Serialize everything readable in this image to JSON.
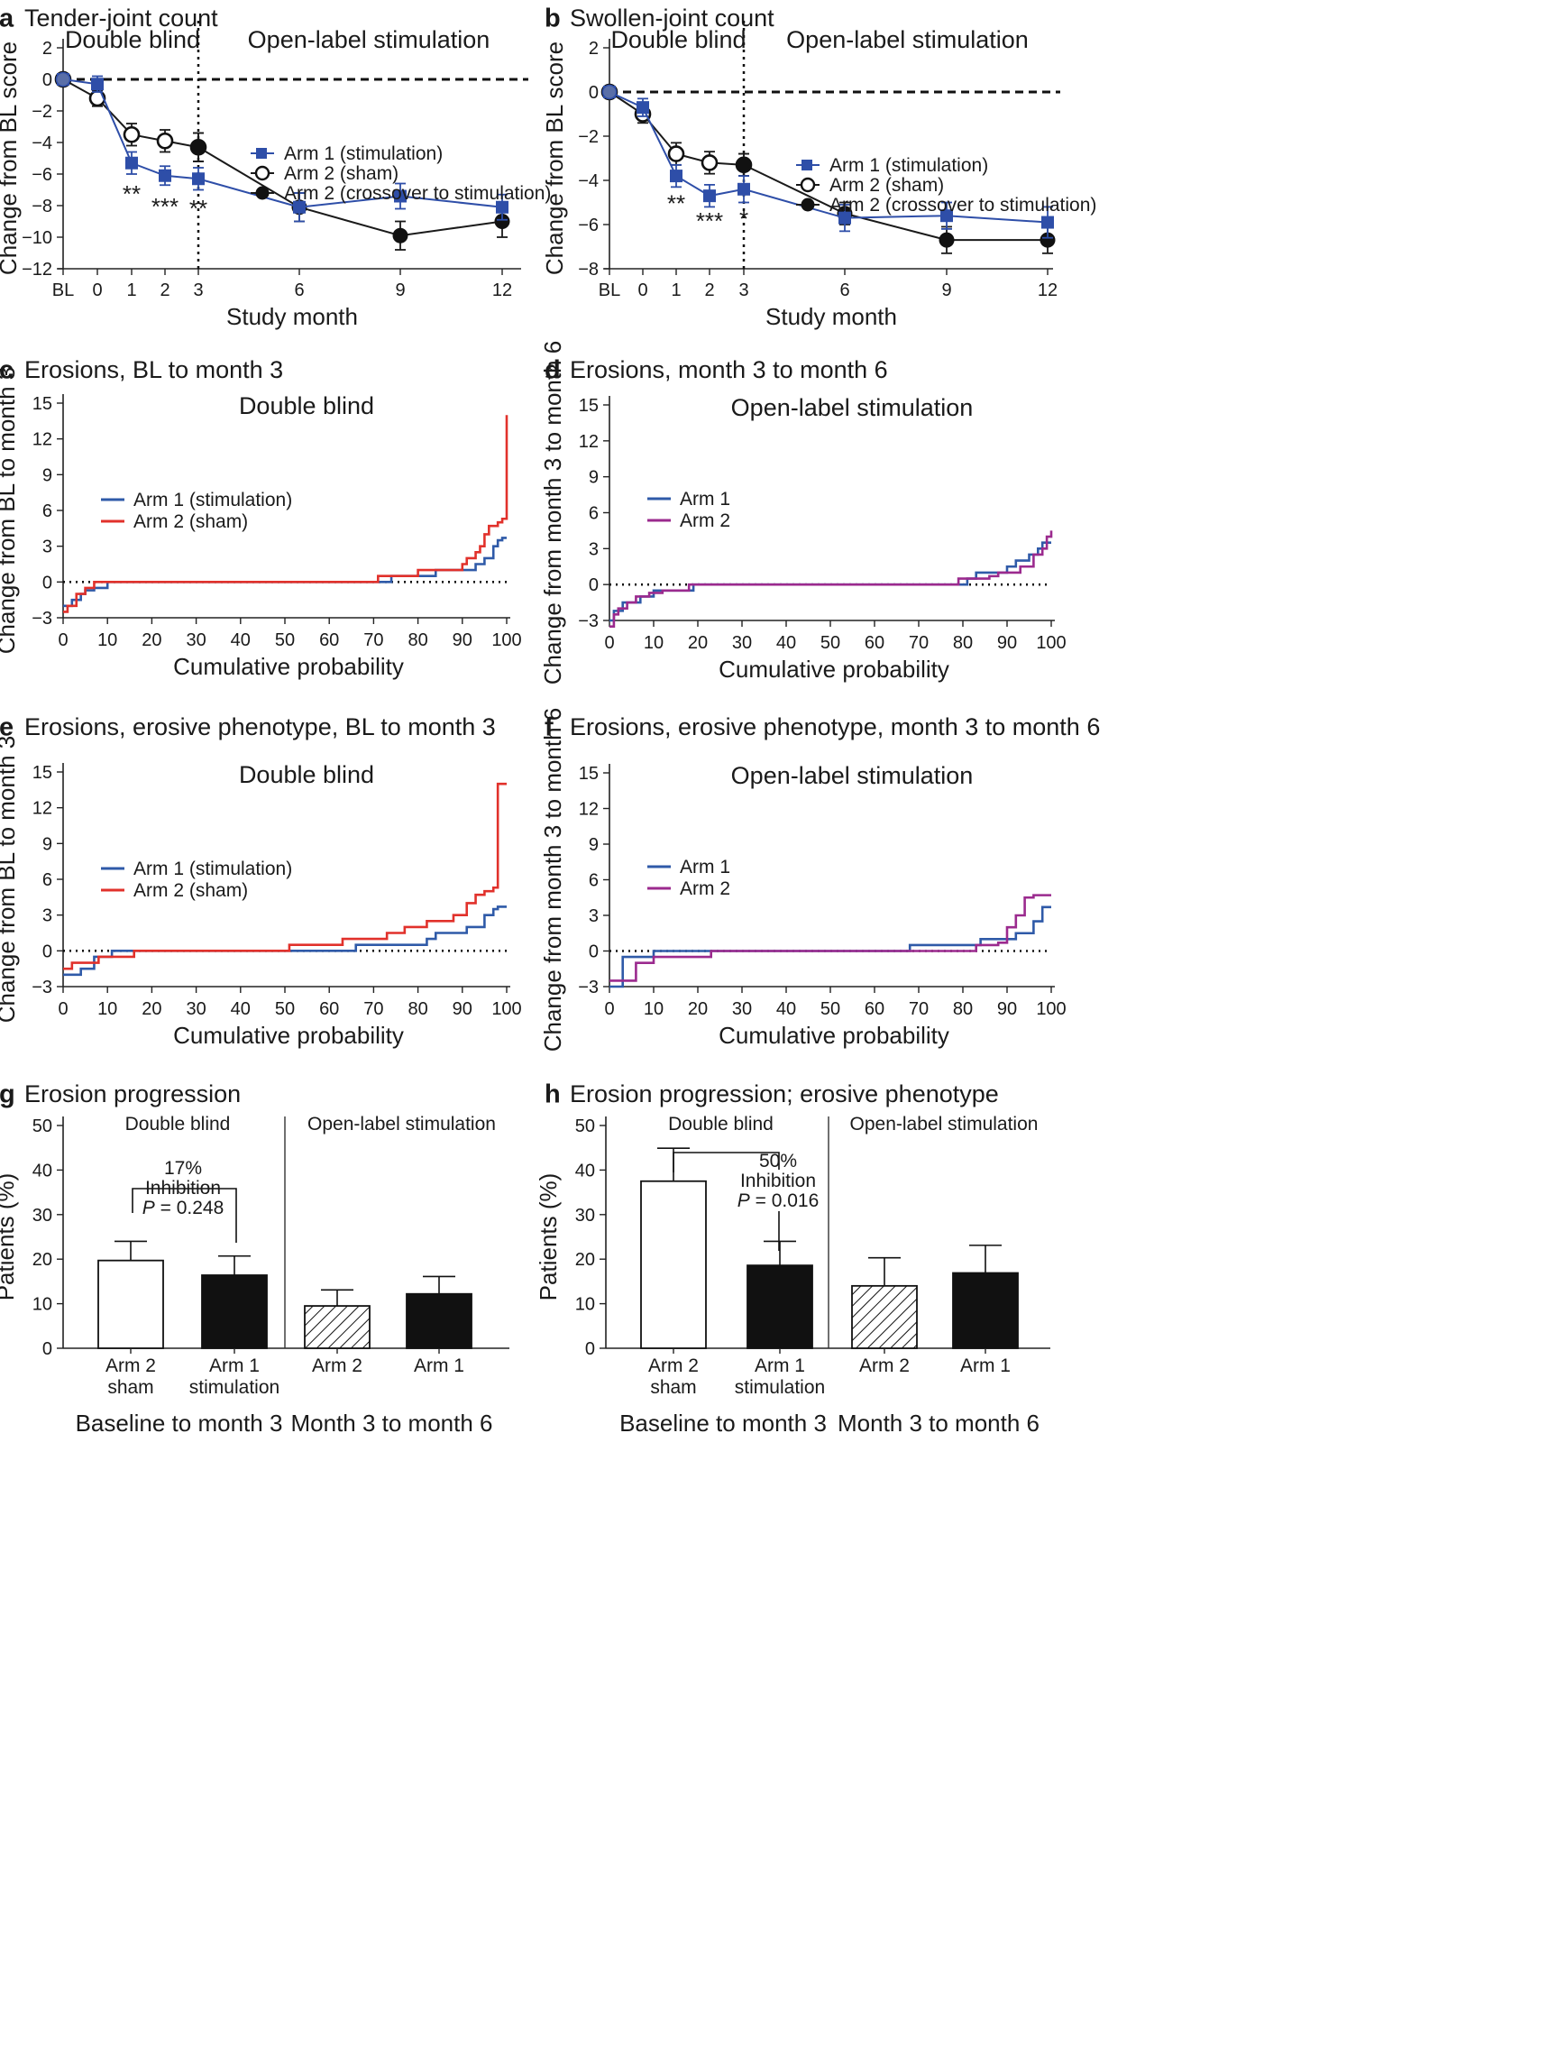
{
  "figure": {
    "colors": {
      "arm1": "#2e4ea8",
      "arm2_sham": "#1a1a1a",
      "cdf_blue": "#2f5aa8",
      "cdf_red": "#e1312b",
      "cdf_purple": "#9b2a8e",
      "bar_black": "#111111"
    }
  },
  "chart_data": [
    {
      "id": "a",
      "letter": "a",
      "type": "line",
      "title": "Tender-joint count",
      "xlabel": "Study month",
      "ylabel": "Change from BL score",
      "x_categories": [
        "BL",
        "0",
        "1",
        "2",
        "3",
        "6",
        "9",
        "12"
      ],
      "ylim": [
        -12,
        2
      ],
      "yticks": [
        "2",
        "0",
        "−2",
        "−4",
        "−6",
        "−8",
        "−10",
        "−12"
      ],
      "section_labels": [
        "Double blind",
        "Open-label stimulation"
      ],
      "divider_at_month": 3,
      "series": [
        {
          "name": "Arm 1 (stimulation)",
          "marker": "square",
          "color": "#2e4ea8",
          "x": [
            "BL",
            "0",
            "1",
            "2",
            "3",
            "6",
            "9",
            "12"
          ],
          "values": [
            0,
            -0.3,
            -5.3,
            -6.1,
            -6.3,
            -8.1,
            -7.4,
            -8.1
          ],
          "errors": [
            0,
            0.5,
            0.7,
            0.6,
            0.7,
            0.9,
            0.8,
            0.8
          ]
        },
        {
          "name": "Arm 2 (sham)",
          "marker": "open-circle",
          "color": "#1a1a1a",
          "x": [
            "BL",
            "0",
            "1",
            "2",
            "3"
          ],
          "values": [
            0,
            -1.2,
            -3.5,
            -3.9,
            -4.3
          ],
          "errors": [
            0,
            0.5,
            0.7,
            0.7,
            0.9
          ]
        },
        {
          "name": "Arm 2 (crossover to stimulation)",
          "marker": "filled-circle",
          "color": "#1a1a1a",
          "x": [
            "3",
            "6",
            "9",
            "12"
          ],
          "values": [
            -4.3,
            -8.1,
            -9.9,
            -9.0
          ],
          "errors": [
            0.9,
            0.9,
            0.9,
            1.0
          ]
        }
      ],
      "annotations": [
        {
          "text": "**",
          "month": "1",
          "y": -7.2
        },
        {
          "text": "***",
          "month": "2",
          "y": -8.0
        },
        {
          "text": "**",
          "month": "3",
          "y": -8.1
        }
      ]
    },
    {
      "id": "b",
      "letter": "b",
      "type": "line",
      "title": "Swollen-joint count",
      "xlabel": "Study month",
      "ylabel": "Change from BL score",
      "x_categories": [
        "BL",
        "0",
        "1",
        "2",
        "3",
        "6",
        "9",
        "12"
      ],
      "ylim": [
        -8,
        2
      ],
      "yticks": [
        "2",
        "0",
        "−2",
        "−4",
        "−6",
        "−8"
      ],
      "section_labels": [
        "Double blind",
        "Open-label stimulation"
      ],
      "divider_at_month": 3,
      "series": [
        {
          "name": "Arm 1 (stimulation)",
          "marker": "square",
          "color": "#2e4ea8",
          "x": [
            "BL",
            "0",
            "1",
            "2",
            "3",
            "6",
            "9",
            "12"
          ],
          "values": [
            0,
            -0.7,
            -3.8,
            -4.7,
            -4.4,
            -5.7,
            -5.6,
            -5.9
          ],
          "errors": [
            0,
            0.4,
            0.5,
            0.5,
            0.6,
            0.6,
            0.6,
            0.7
          ]
        },
        {
          "name": "Arm 2 (sham)",
          "marker": "open-circle",
          "color": "#1a1a1a",
          "x": [
            "BL",
            "0",
            "1",
            "2",
            "3"
          ],
          "values": [
            0,
            -1.0,
            -2.8,
            -3.2,
            -3.3
          ],
          "errors": [
            0,
            0.4,
            0.5,
            0.5,
            0.5
          ]
        },
        {
          "name": "Arm 2 (crossover to stimulation)",
          "marker": "filled-circle",
          "color": "#1a1a1a",
          "x": [
            "3",
            "6",
            "9",
            "12"
          ],
          "values": [
            -3.3,
            -5.5,
            -6.7,
            -6.7
          ],
          "errors": [
            0.5,
            0.5,
            0.6,
            0.6
          ]
        }
      ],
      "annotations": [
        {
          "text": "**",
          "month": "1",
          "y": -5.0
        },
        {
          "text": "***",
          "month": "2",
          "y": -5.8
        },
        {
          "text": "*",
          "month": "3",
          "y": -5.7
        }
      ]
    },
    {
      "id": "c",
      "letter": "c",
      "type": "line",
      "title": "Erosions, BL to month 3",
      "inner_title": "Double blind",
      "xlabel": "Cumulative probability",
      "ylabel": "Change from BL to month 3",
      "xlim": [
        0,
        100
      ],
      "ylim": [
        -3,
        15
      ],
      "xticks": [
        0,
        10,
        20,
        30,
        40,
        50,
        60,
        70,
        80,
        90,
        100
      ],
      "yticks": [
        "15",
        "12",
        "9",
        "6",
        "3",
        "0",
        "−3"
      ],
      "series": [
        {
          "name": "Arm 1 (stimulation)",
          "color": "#2f5aa8",
          "x": [
            0,
            2,
            4,
            5,
            7,
            10,
            74,
            84,
            93,
            95,
            97,
            98,
            99,
            100
          ],
          "values": [
            -2,
            -1.5,
            -1,
            -0.7,
            -0.5,
            0,
            0.5,
            1,
            1.5,
            2,
            3,
            3.5,
            3.7,
            3.7
          ]
        },
        {
          "name": "Arm 2 (sham)",
          "color": "#e1312b",
          "x": [
            0,
            1,
            3,
            5,
            7,
            9,
            71,
            73,
            80,
            90,
            91,
            93,
            94,
            95,
            96,
            98,
            99,
            100
          ],
          "values": [
            -2.5,
            -2,
            -1,
            -0.5,
            0,
            0,
            0.5,
            0.5,
            1,
            1.5,
            2,
            2.5,
            3,
            4,
            4.7,
            5,
            5.3,
            14
          ]
        }
      ]
    },
    {
      "id": "d",
      "letter": "d",
      "type": "line",
      "title": "Erosions, month 3 to month 6",
      "inner_title": "Open-label stimulation",
      "xlabel": "Cumulative probability",
      "ylabel": "Change from month 3 to month 6",
      "xlim": [
        0,
        100
      ],
      "ylim": [
        -3,
        15
      ],
      "xticks": [
        0,
        10,
        20,
        30,
        40,
        50,
        60,
        70,
        80,
        90,
        100
      ],
      "yticks": [
        "15",
        "12",
        "9",
        "6",
        "3",
        "0",
        "−3"
      ],
      "series": [
        {
          "name": "Arm 1",
          "color": "#2f5aa8",
          "x": [
            0,
            1,
            3,
            7,
            10,
            14,
            19,
            81,
            83,
            85,
            90,
            92,
            95,
            97,
            98,
            99,
            100
          ],
          "values": [
            -3,
            -2.2,
            -1.5,
            -1,
            -0.5,
            -0.5,
            0,
            0.5,
            1,
            1,
            1.5,
            2,
            2.5,
            3,
            3.5,
            3.5,
            3.5
          ]
        },
        {
          "name": "Arm 2",
          "color": "#9b2a8e",
          "x": [
            0,
            1,
            2,
            4,
            6,
            9,
            12,
            18,
            79,
            82,
            86,
            88,
            93,
            96,
            98,
            99,
            100
          ],
          "values": [
            -3.5,
            -2.5,
            -2,
            -1.5,
            -1,
            -0.7,
            -0.5,
            0,
            0.5,
            0.5,
            0.7,
            1,
            1.5,
            2.5,
            3,
            4,
            4.5
          ]
        }
      ]
    },
    {
      "id": "e",
      "letter": "e",
      "type": "line",
      "title": "Erosions, erosive phenotype, BL to month 3",
      "inner_title": "Double blind",
      "xlabel": "Cumulative probability",
      "ylabel": "Change from BL to month 3",
      "xlim": [
        0,
        100
      ],
      "ylim": [
        -3,
        15
      ],
      "xticks": [
        0,
        10,
        20,
        30,
        40,
        50,
        60,
        70,
        80,
        90,
        100
      ],
      "yticks": [
        "15",
        "12",
        "9",
        "6",
        "3",
        "0",
        "−3"
      ],
      "series": [
        {
          "name": "Arm 1 (stimulation)",
          "color": "#2f5aa8",
          "x": [
            0,
            4,
            7,
            11,
            66,
            82,
            84,
            91,
            95,
            97,
            98,
            100
          ],
          "values": [
            -2,
            -1.5,
            -0.5,
            0,
            0.5,
            1,
            1.5,
            2,
            3,
            3.5,
            3.7,
            3.7
          ]
        },
        {
          "name": "Arm 2 (sham)",
          "color": "#e1312b",
          "x": [
            0,
            2,
            8,
            16,
            51,
            63,
            73,
            77,
            82,
            88,
            91,
            93,
            95,
            97,
            98,
            100
          ],
          "values": [
            -1.5,
            -1,
            -0.5,
            0,
            0.5,
            1,
            1.5,
            2,
            2.5,
            3,
            4,
            4.7,
            5,
            5.3,
            14,
            14
          ]
        }
      ]
    },
    {
      "id": "f",
      "letter": "f",
      "type": "line",
      "title": "Erosions, erosive phenotype, month 3 to month 6",
      "inner_title": "Open-label stimulation",
      "xlabel": "Cumulative probability",
      "ylabel": "Change from month 3 to month 6",
      "xlim": [
        0,
        100
      ],
      "ylim": [
        -3,
        15
      ],
      "xticks": [
        0,
        10,
        20,
        30,
        40,
        50,
        60,
        70,
        80,
        90,
        100
      ],
      "yticks": [
        "15",
        "12",
        "9",
        "6",
        "3",
        "0",
        "−3"
      ],
      "series": [
        {
          "name": "Arm 1",
          "color": "#2f5aa8",
          "x": [
            0,
            3,
            10,
            68,
            84,
            88,
            92,
            96,
            98,
            100
          ],
          "values": [
            -3,
            -0.5,
            0,
            0.5,
            1,
            1,
            1.5,
            2.5,
            3.7,
            3.7
          ]
        },
        {
          "name": "Arm 2",
          "color": "#9b2a8e",
          "x": [
            0,
            6,
            10,
            23,
            83,
            88,
            90,
            92,
            94,
            96,
            98,
            100
          ],
          "values": [
            -2.5,
            -1,
            -0.5,
            0,
            0.5,
            0.7,
            2,
            3,
            4.5,
            4.7,
            4.7,
            4.7
          ]
        }
      ]
    },
    {
      "id": "g",
      "letter": "g",
      "type": "bar",
      "title": "Erosion progression",
      "ylabel": "Patients (%)",
      "ylim": [
        0,
        50
      ],
      "yticks": [
        "50",
        "40",
        "30",
        "20",
        "10",
        "0"
      ],
      "section_labels": [
        "Double blind",
        "Open-label stimulation"
      ],
      "group_labels": [
        "Baseline to month 3",
        "Month 3 to month 6"
      ],
      "bars": [
        {
          "label_line1": "Arm 2",
          "label_line2": "sham",
          "value": 19.7,
          "error": 4.3,
          "fill": "white"
        },
        {
          "label_line1": "Arm 1",
          "label_line2": "stimulation",
          "value": 16.4,
          "error": 4.3,
          "fill": "black"
        },
        {
          "label_line1": "Arm 2",
          "label_line2": "",
          "value": 9.5,
          "error": 3.6,
          "fill": "hatch"
        },
        {
          "label_line1": "Arm 1",
          "label_line2": "",
          "value": 12.2,
          "error": 3.9,
          "fill": "black"
        }
      ],
      "comparison": {
        "line1": "17%",
        "line2": "Inhibition",
        "p_label": "P",
        "p_value": " = 0.248"
      }
    },
    {
      "id": "h",
      "letter": "h",
      "type": "bar",
      "title": "Erosion progression; erosive phenotype",
      "ylabel": "Patients (%)",
      "ylim": [
        0,
        50
      ],
      "yticks": [
        "50",
        "40",
        "30",
        "20",
        "10",
        "0"
      ],
      "section_labels": [
        "Double blind",
        "Open-label stimulation"
      ],
      "group_labels": [
        "Baseline to month 3",
        "Month 3 to month 6"
      ],
      "bars": [
        {
          "label_line1": "Arm 2",
          "label_line2": "sham",
          "value": 37.5,
          "error": 7.4,
          "fill": "white"
        },
        {
          "label_line1": "Arm 1",
          "label_line2": "stimulation",
          "value": 18.6,
          "error": 5.4,
          "fill": "black"
        },
        {
          "label_line1": "Arm 2",
          "label_line2": "",
          "value": 14.0,
          "error": 6.3,
          "fill": "hatch"
        },
        {
          "label_line1": "Arm 1",
          "label_line2": "",
          "value": 16.9,
          "error": 6.2,
          "fill": "black"
        }
      ],
      "comparison": {
        "line1": "50%",
        "line2": "Inhibition",
        "p_label": "P",
        "p_value": " = 0.016"
      }
    }
  ]
}
